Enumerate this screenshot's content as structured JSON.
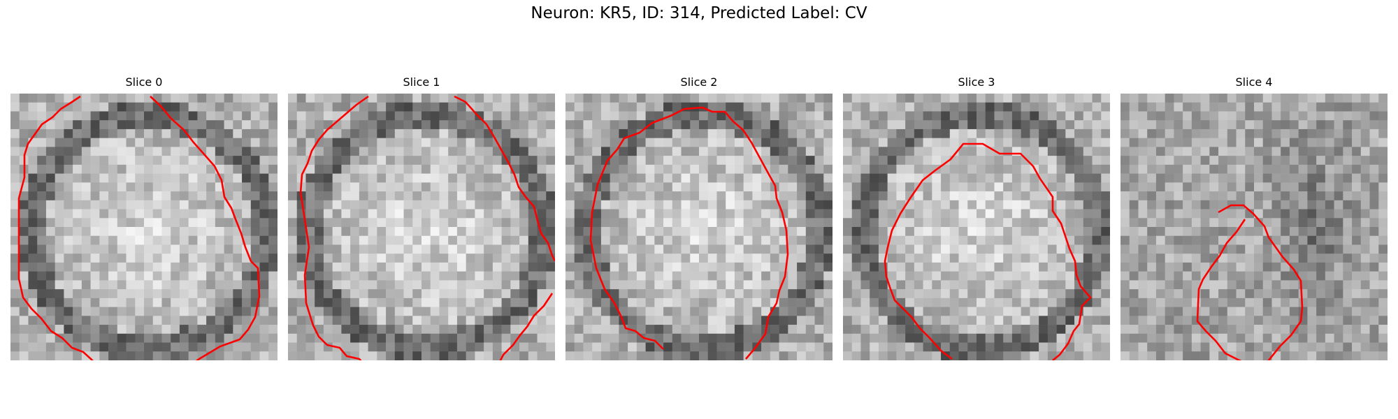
{
  "figure": {
    "title": "Neuron: KR5, ID: 314, Predicted Label: CV"
  },
  "panels": [
    {
      "title": "Slice 0",
      "seed": 11,
      "outline_color": "#ff0000"
    },
    {
      "title": "Slice 1",
      "seed": 23,
      "outline_color": "#ff0000"
    },
    {
      "title": "Slice 2",
      "seed": 37,
      "outline_color": "#ff0000"
    },
    {
      "title": "Slice 3",
      "seed": 41,
      "outline_color": "#ff0000"
    },
    {
      "title": "Slice 4",
      "seed": 59,
      "outline_color": "#ff0000"
    }
  ],
  "image": {
    "colormap": "grayscale",
    "grid_cells": 30
  }
}
